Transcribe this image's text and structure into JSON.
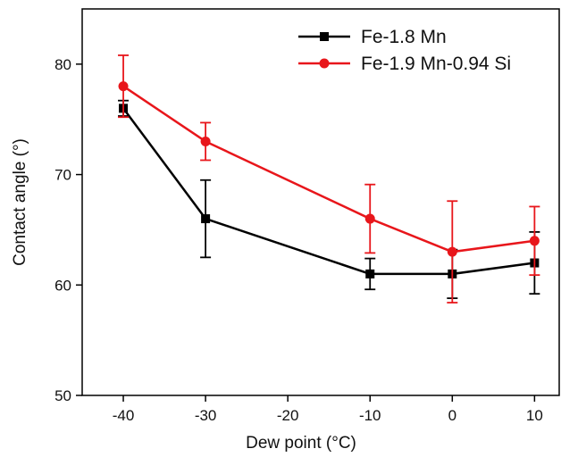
{
  "chart_data": {
    "type": "line",
    "title": "",
    "xlabel": "Dew point (°C)",
    "ylabel": "Contact angle (°)",
    "xlim": [
      -45,
      13
    ],
    "ylim": [
      50,
      85
    ],
    "xticks": [
      -40,
      -30,
      -20,
      -10,
      0,
      10
    ],
    "yticks": [
      50,
      60,
      70,
      80
    ],
    "grid": false,
    "legend_position": "top-right",
    "series": [
      {
        "name": "Fe-1.8 Mn",
        "color": "#000000",
        "marker": "square",
        "x": [
          -40,
          -30,
          -10,
          0,
          10
        ],
        "y": [
          76,
          66,
          61,
          61,
          62
        ],
        "err": [
          0.7,
          3.5,
          1.4,
          2.2,
          2.8
        ]
      },
      {
        "name": "Fe-1.9 Mn-0.94 Si",
        "color": "#e8161b",
        "marker": "circle",
        "x": [
          -40,
          -30,
          -10,
          0,
          10
        ],
        "y": [
          78,
          73,
          66,
          63,
          64
        ],
        "err": [
          2.8,
          1.7,
          3.1,
          4.6,
          3.1
        ]
      }
    ]
  }
}
